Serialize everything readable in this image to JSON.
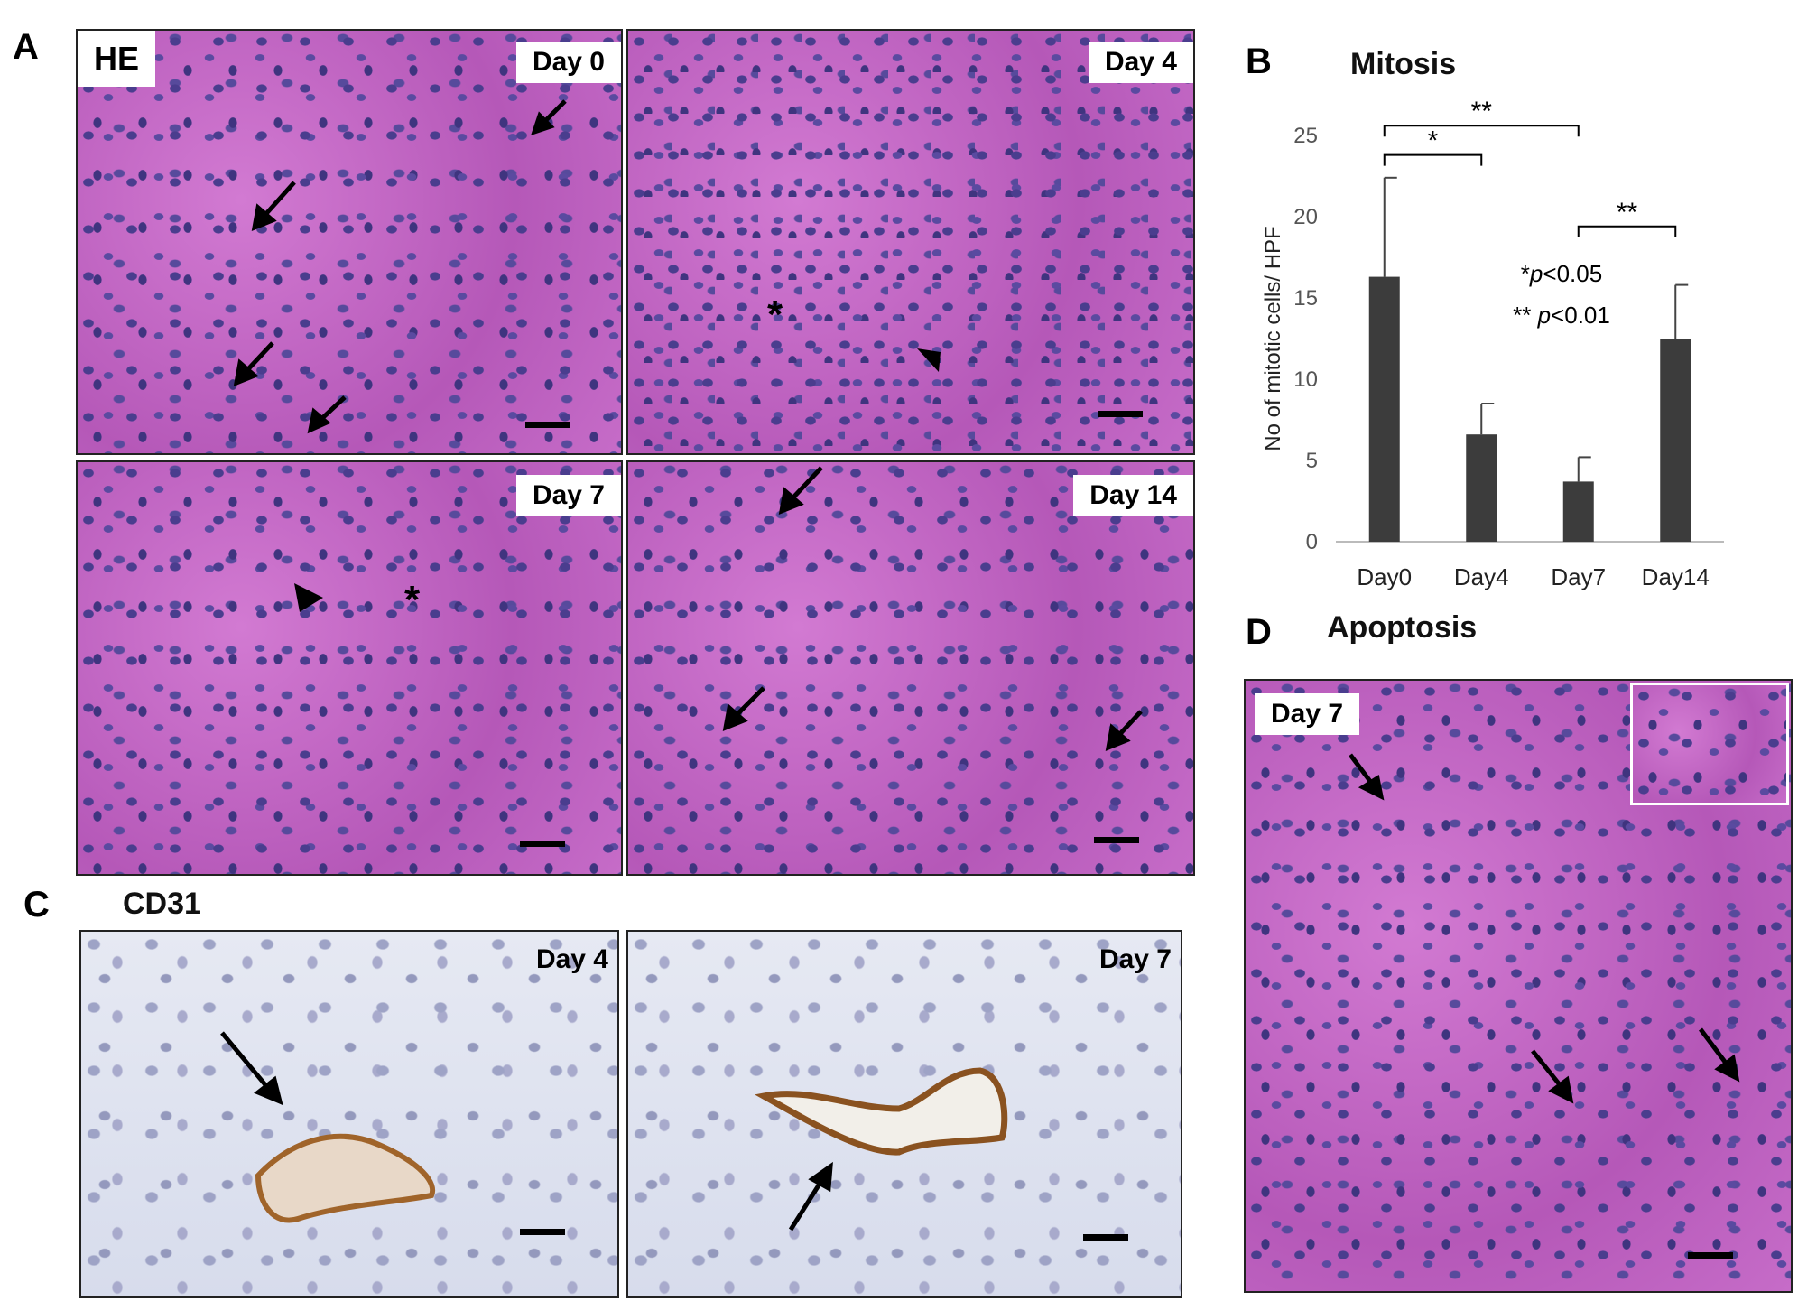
{
  "panels": {
    "A": "A",
    "B": "B",
    "C": "C",
    "D": "D"
  },
  "panel_a": {
    "stain_label": "HE",
    "images": [
      {
        "label": "Day 0"
      },
      {
        "label": "Day 4"
      },
      {
        "label": "Day 7"
      },
      {
        "label": "Day 14"
      }
    ],
    "asterisk": "*"
  },
  "panel_c": {
    "title": "CD31",
    "images": [
      {
        "label": "Day 4"
      },
      {
        "label": "Day 7"
      }
    ]
  },
  "panel_d": {
    "title": "Apoptosis",
    "image_label": "Day 7"
  },
  "colors": {
    "bar": "#3c3c3c",
    "he_stain": "#c25ec0",
    "cd31_background": "#dde2ef",
    "cd31_vessel": "#a0642a"
  },
  "chart_data": {
    "type": "bar",
    "title": "Mitosis",
    "ylabel": "No of mitotic cells/ HPF",
    "xlabel": "",
    "categories": [
      "Day0",
      "Day4",
      "Day7",
      "Day14"
    ],
    "values": [
      16.3,
      6.6,
      3.7,
      12.5
    ],
    "errors": [
      6.1,
      1.9,
      1.5,
      3.3
    ],
    "ylim": [
      0,
      25
    ],
    "yticks": [
      0,
      5,
      10,
      15,
      20,
      25
    ],
    "grid": false,
    "significance": [
      {
        "from": "Day0",
        "to": "Day4",
        "label": "*"
      },
      {
        "from": "Day0",
        "to": "Day7",
        "label": "**"
      },
      {
        "from": "Day7",
        "to": "Day14",
        "label": "**"
      }
    ],
    "legend_lines": [
      {
        "stars": "*",
        "p": "p",
        "rel": "<0.05"
      },
      {
        "stars": "** ",
        "p": "p",
        "rel": "<0.01"
      }
    ]
  }
}
